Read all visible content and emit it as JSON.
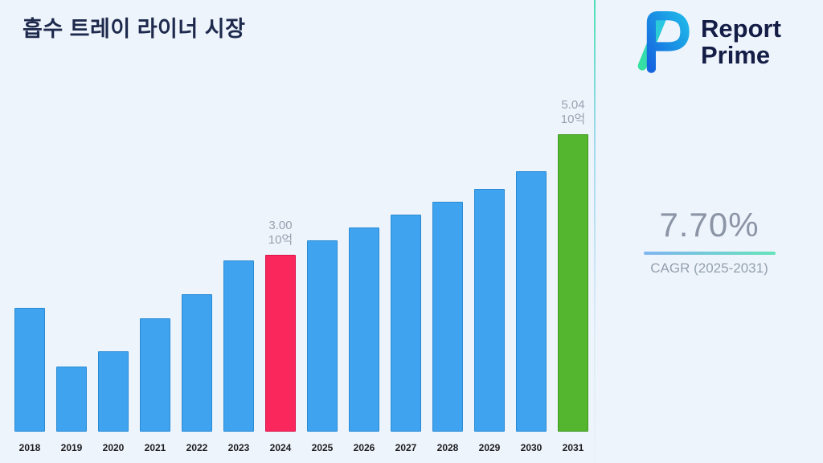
{
  "header": {
    "title": "흡수 트레이 라이너 시장"
  },
  "logo": {
    "line1": "Report",
    "line2": "Prime"
  },
  "stats": {
    "cagr_value": "7.70%",
    "cagr_label": "CAGR (2025-2031)"
  },
  "chart_data": {
    "type": "bar",
    "title": "흡수 트레이 라이너 시장",
    "unit_label": "10억",
    "categories": [
      "2018",
      "2019",
      "2020",
      "2021",
      "2022",
      "2023",
      "2024",
      "2025",
      "2026",
      "2027",
      "2028",
      "2029",
      "2030",
      "2031"
    ],
    "values": [
      2.1,
      1.1,
      1.36,
      1.92,
      2.33,
      2.9,
      3.0,
      3.24,
      3.46,
      3.68,
      3.9,
      4.12,
      4.42,
      5.04
    ],
    "annotations": {
      "2024": [
        "3.00",
        "10억"
      ],
      "2031": [
        "5.04",
        "10억"
      ]
    },
    "ylim": [
      0,
      5.5
    ],
    "grid": false,
    "legend": false,
    "xlabel": "",
    "ylabel": "",
    "colors": {
      "bar_default": "#3fa3ef",
      "bar_default_border": "#2a8bd4",
      "bar_2024": "#f9275c",
      "bar_2024_border": "#d9134a",
      "bar_2031": "#54b52f",
      "bar_2031_border": "#3f9a20",
      "accent_gradient_start": "#7fb4f2",
      "accent_gradient_end": "#66e3ba",
      "brand_navy": "#141d46",
      "text_gray": "#8b95a6"
    }
  }
}
